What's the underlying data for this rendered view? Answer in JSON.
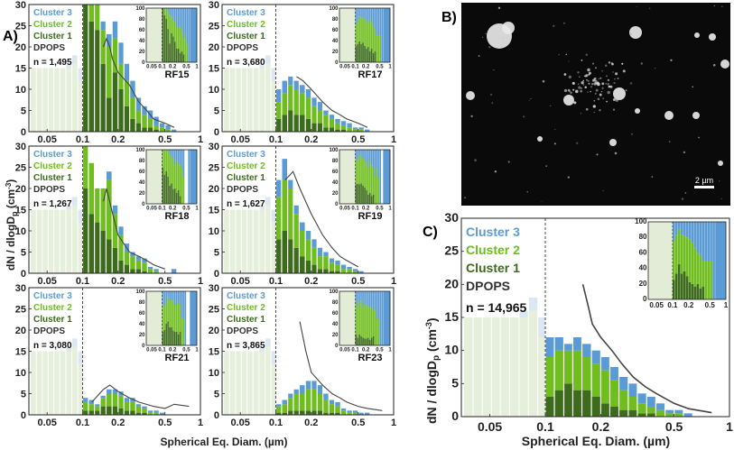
{
  "figure": {
    "label_a": "A)",
    "label_b": "B)",
    "label_c": "C)",
    "ylabel": "dN / dlogD",
    "ylabel_sub": "p",
    "ylabel_unit": " (cm",
    "ylabel_exp": "-3",
    "ylabel_close": ")",
    "xlabel": "Spherical Eq. Diam. (µm)",
    "scale_bar": "2 µm"
  },
  "legend": {
    "c3": "Cluster 3",
    "c2": "Cluster 2",
    "c1": "Cluster 1",
    "dpops": "DPOPS"
  },
  "colors": {
    "c1": "#3d6b1c",
    "c2": "#6fbd1f",
    "c3": "#5b9bd5",
    "dpops": "#444444",
    "shade": "#e2ecd6"
  },
  "chart_data": [
    {
      "type": "bar",
      "name": "RF15",
      "n_label": "n = 1,495",
      "xscale": "log",
      "xlim": [
        0.035,
        1
      ],
      "ylim": [
        0,
        30
      ],
      "yticks": [
        0,
        5,
        10,
        15,
        20,
        25,
        30
      ],
      "xticks": [
        "0.05",
        "0.1",
        "0.2",
        "0.5",
        "1"
      ],
      "cutoff": 0.1,
      "bin_edges": [
        0.1,
        0.112,
        0.126,
        0.141,
        0.158,
        0.178,
        0.2,
        0.224,
        0.251,
        0.282,
        0.316,
        0.355,
        0.398,
        0.447,
        0.501,
        0.562,
        0.631
      ],
      "series": [
        {
          "name": "Cluster 1",
          "values": [
            30,
            26,
            24,
            16,
            8,
            14,
            10,
            6,
            3,
            2,
            1,
            1,
            0.5,
            0,
            0,
            0
          ]
        },
        {
          "name": "Cluster 2",
          "values": [
            0,
            4,
            6,
            8,
            12,
            8,
            6,
            6,
            5,
            3,
            3,
            2,
            1,
            1,
            0.5,
            0
          ]
        },
        {
          "name": "Cluster 3",
          "values": [
            0,
            0,
            0,
            2,
            3,
            4,
            5,
            4,
            4,
            3,
            2,
            2,
            2,
            1,
            1,
            0.5
          ]
        }
      ],
      "dpops_line": {
        "x": [
          0.15,
          0.16,
          0.17,
          0.18,
          0.2,
          0.25,
          0.3,
          0.35,
          0.4,
          0.5,
          0.6
        ],
        "y": [
          20,
          22,
          20,
          17,
          14,
          11,
          7,
          5,
          3,
          2,
          1
        ]
      }
    },
    {
      "type": "bar",
      "name": "RF17",
      "n_label": "n = 3,680",
      "xscale": "log",
      "xlim": [
        0.035,
        1
      ],
      "ylim": [
        0,
        30
      ],
      "yticks": [
        0,
        5,
        10,
        15,
        20,
        25,
        30
      ],
      "xticks": [
        "0.05",
        "0.1",
        "0.2",
        "0.5",
        "1"
      ],
      "cutoff": 0.1,
      "bin_edges": [
        0.1,
        0.112,
        0.126,
        0.141,
        0.158,
        0.178,
        0.2,
        0.224,
        0.251,
        0.282,
        0.316,
        0.355,
        0.398,
        0.447,
        0.501,
        0.562,
        0.631
      ],
      "series": [
        {
          "name": "Cluster 1",
          "values": [
            3,
            4,
            5,
            4,
            4,
            3,
            2,
            2,
            1,
            1,
            0.5,
            0.5,
            0,
            0,
            0,
            0
          ]
        },
        {
          "name": "Cluster 2",
          "values": [
            4,
            5,
            6,
            6,
            5,
            5,
            4,
            3,
            3,
            2,
            1.5,
            1,
            1,
            0.5,
            0.5,
            0
          ]
        },
        {
          "name": "Cluster 3",
          "values": [
            3,
            3,
            2,
            2,
            2,
            2,
            2,
            2,
            1,
            1,
            1,
            1,
            1,
            0.5,
            0.5,
            0.5
          ]
        }
      ],
      "dpops_line": {
        "x": [
          0.15,
          0.17,
          0.2,
          0.25,
          0.3,
          0.35,
          0.4,
          0.5,
          0.6
        ],
        "y": [
          13,
          12,
          10,
          7,
          5,
          4,
          3,
          2,
          1
        ]
      }
    },
    {
      "type": "bar",
      "name": "RF18",
      "n_label": "n = 1,267",
      "xscale": "log",
      "xlim": [
        0.035,
        1
      ],
      "ylim": [
        0,
        30
      ],
      "yticks": [
        0,
        5,
        10,
        15,
        20,
        25,
        30
      ],
      "xticks": [
        "0.05",
        "0.1",
        "0.2",
        "0.5",
        "1"
      ],
      "cutoff": 0.1,
      "bin_edges": [
        0.1,
        0.112,
        0.126,
        0.141,
        0.158,
        0.178,
        0.2,
        0.224,
        0.251,
        0.282,
        0.316,
        0.355,
        0.398,
        0.447,
        0.501,
        0.562,
        0.631
      ],
      "series": [
        {
          "name": "Cluster 1",
          "values": [
            20,
            14,
            12,
            10,
            8,
            6,
            3,
            2,
            1,
            1,
            0.5,
            0,
            0,
            0,
            0,
            0
          ]
        },
        {
          "name": "Cluster 2",
          "values": [
            10,
            12,
            8,
            10,
            14,
            8,
            6,
            3,
            3,
            2,
            2,
            1,
            0.5,
            0,
            0,
            0
          ]
        },
        {
          "name": "Cluster 3",
          "values": [
            0,
            0,
            0,
            0,
            2,
            2,
            2,
            2,
            1,
            1,
            1,
            0.5,
            0.5,
            0,
            0,
            1
          ]
        }
      ],
      "dpops_line": {
        "x": [
          0.15,
          0.16,
          0.18,
          0.2,
          0.25,
          0.3,
          0.35,
          0.4,
          0.5
        ],
        "y": [
          17,
          20,
          14,
          9,
          5,
          4,
          3,
          2,
          1
        ]
      }
    },
    {
      "type": "bar",
      "name": "RF19",
      "n_label": "n = 1,627",
      "xscale": "log",
      "xlim": [
        0.035,
        1
      ],
      "ylim": [
        0,
        30
      ],
      "yticks": [
        0,
        5,
        10,
        15,
        20,
        25,
        30
      ],
      "xticks": [
        "0.05",
        "0.1",
        "0.2",
        "0.5",
        "1"
      ],
      "cutoff": 0.1,
      "bin_edges": [
        0.1,
        0.112,
        0.126,
        0.141,
        0.158,
        0.178,
        0.2,
        0.224,
        0.251,
        0.282,
        0.316,
        0.355,
        0.398,
        0.447,
        0.501,
        0.562,
        0.631
      ],
      "series": [
        {
          "name": "Cluster 1",
          "values": [
            8,
            10,
            8,
            6,
            4,
            3,
            2,
            1,
            1,
            0.5,
            0.5,
            0,
            0,
            0,
            0,
            0
          ]
        },
        {
          "name": "Cluster 2",
          "values": [
            10,
            12,
            12,
            8,
            6,
            5,
            4,
            3,
            3,
            2,
            1.5,
            1,
            1,
            0.5,
            0,
            0
          ]
        },
        {
          "name": "Cluster 3",
          "values": [
            4,
            5,
            2,
            2,
            2,
            2,
            2,
            2,
            1,
            1,
            1,
            1,
            0.5,
            0.5,
            0.5,
            0
          ]
        }
      ],
      "dpops_line": {
        "x": [
          0.12,
          0.14,
          0.16,
          0.2,
          0.25,
          0.3,
          0.35,
          0.4,
          0.5
        ],
        "y": [
          22,
          24,
          20,
          14,
          9,
          6,
          4,
          3,
          1.5
        ]
      }
    },
    {
      "type": "bar",
      "name": "RF21",
      "n_label": "n = 3,080",
      "xscale": "log",
      "xlim": [
        0.035,
        1
      ],
      "ylim": [
        0,
        30
      ],
      "yticks": [
        0,
        5,
        10,
        15,
        20,
        25,
        30
      ],
      "xticks": [
        "0.05",
        "0.1",
        "0.2",
        "0.5",
        "1"
      ],
      "cutoff": 0.1,
      "bin_edges": [
        0.1,
        0.112,
        0.126,
        0.141,
        0.158,
        0.178,
        0.2,
        0.224,
        0.251,
        0.282,
        0.316,
        0.355,
        0.398,
        0.447,
        0.501,
        0.562,
        0.631
      ],
      "series": [
        {
          "name": "Cluster 1",
          "values": [
            1,
            1,
            1,
            2,
            2,
            2,
            1.5,
            1,
            1,
            0.5,
            0.5,
            0,
            0,
            0,
            0,
            0
          ]
        },
        {
          "name": "Cluster 2",
          "values": [
            2,
            1.5,
            1,
            2,
            3,
            3,
            3,
            2,
            2,
            1.5,
            1,
            0.5,
            0.5,
            0,
            0,
            0
          ]
        },
        {
          "name": "Cluster 3",
          "values": [
            1,
            1,
            0.5,
            0.5,
            1,
            1,
            1,
            1,
            1,
            0.5,
            0.5,
            0.5,
            0.5,
            0.5,
            0,
            0
          ]
        }
      ],
      "dpops_line": {
        "x": [
          0.12,
          0.15,
          0.17,
          0.2,
          0.25,
          0.3,
          0.4,
          0.5,
          0.6,
          0.8
        ],
        "y": [
          3,
          6,
          7,
          5.5,
          4,
          3,
          2,
          1.5,
          2.5,
          2
        ]
      }
    },
    {
      "type": "bar",
      "name": "RF23",
      "n_label": "n = 3,865",
      "xscale": "log",
      "xlim": [
        0.035,
        1
      ],
      "ylim": [
        0,
        30
      ],
      "yticks": [
        0,
        5,
        10,
        15,
        20,
        25,
        30
      ],
      "xticks": [
        "0.05",
        "0.1",
        "0.2",
        "0.5",
        "1"
      ],
      "cutoff": 0.1,
      "bin_edges": [
        0.1,
        0.112,
        0.126,
        0.141,
        0.158,
        0.178,
        0.2,
        0.224,
        0.251,
        0.282,
        0.316,
        0.355,
        0.398,
        0.447,
        0.501,
        0.562,
        0.631
      ],
      "series": [
        {
          "name": "Cluster 1",
          "values": [
            0.5,
            0.5,
            1,
            1,
            1,
            1,
            1,
            1,
            0.5,
            0.5,
            0.5,
            0,
            0,
            0,
            0,
            0
          ]
        },
        {
          "name": "Cluster 2",
          "values": [
            1.5,
            2,
            3,
            4,
            4,
            5,
            5,
            4,
            3,
            2,
            1.5,
            1,
            0.5,
            0.5,
            0,
            0
          ]
        },
        {
          "name": "Cluster 3",
          "values": [
            0.5,
            1,
            1,
            1,
            2,
            2,
            2,
            2,
            1.5,
            1,
            1,
            0.5,
            0.5,
            0.5,
            0.5,
            0.5
          ]
        }
      ],
      "dpops_line": {
        "x": [
          0.16,
          0.18,
          0.2,
          0.25,
          0.3,
          0.35,
          0.4,
          0.5,
          0.6,
          0.8
        ],
        "y": [
          22,
          15,
          10,
          7,
          5,
          4,
          3,
          2,
          1.5,
          1
        ]
      }
    },
    {
      "type": "bar",
      "name": "",
      "n_label": "n = 14,965",
      "xscale": "log",
      "xlim": [
        0.035,
        1
      ],
      "ylim": [
        0,
        30
      ],
      "yticks": [
        0,
        5,
        10,
        15,
        20,
        25,
        30
      ],
      "xticks": [
        "0.05",
        "0.1",
        "0.2",
        "0.5",
        "1"
      ],
      "cutoff": 0.1,
      "bin_edges": [
        0.1,
        0.112,
        0.126,
        0.141,
        0.158,
        0.178,
        0.2,
        0.224,
        0.251,
        0.282,
        0.316,
        0.355,
        0.398,
        0.447,
        0.501,
        0.562,
        0.631
      ],
      "series": [
        {
          "name": "Cluster 1",
          "values": [
            3,
            4,
            5,
            4,
            4,
            3,
            2,
            1.5,
            1,
            1,
            0.5,
            0.5,
            0,
            0,
            0,
            0
          ]
        },
        {
          "name": "Cluster 2",
          "values": [
            6,
            6,
            5,
            6,
            5,
            5,
            5,
            4,
            3,
            2,
            1.5,
            1,
            1,
            0.5,
            0.5,
            0
          ]
        },
        {
          "name": "Cluster 3",
          "values": [
            3,
            2,
            1,
            2,
            2,
            2,
            2,
            2,
            2,
            2,
            1.5,
            1.5,
            1,
            0.5,
            0.5,
            0.5
          ]
        }
      ],
      "dpops_line": {
        "x": [
          0.16,
          0.17,
          0.18,
          0.2,
          0.23,
          0.26,
          0.3,
          0.35,
          0.4,
          0.5,
          0.6,
          0.8
        ],
        "y": [
          20,
          17,
          14,
          12,
          10,
          8,
          6,
          4.5,
          3.5,
          2,
          1.2,
          0.6
        ]
      }
    }
  ]
}
